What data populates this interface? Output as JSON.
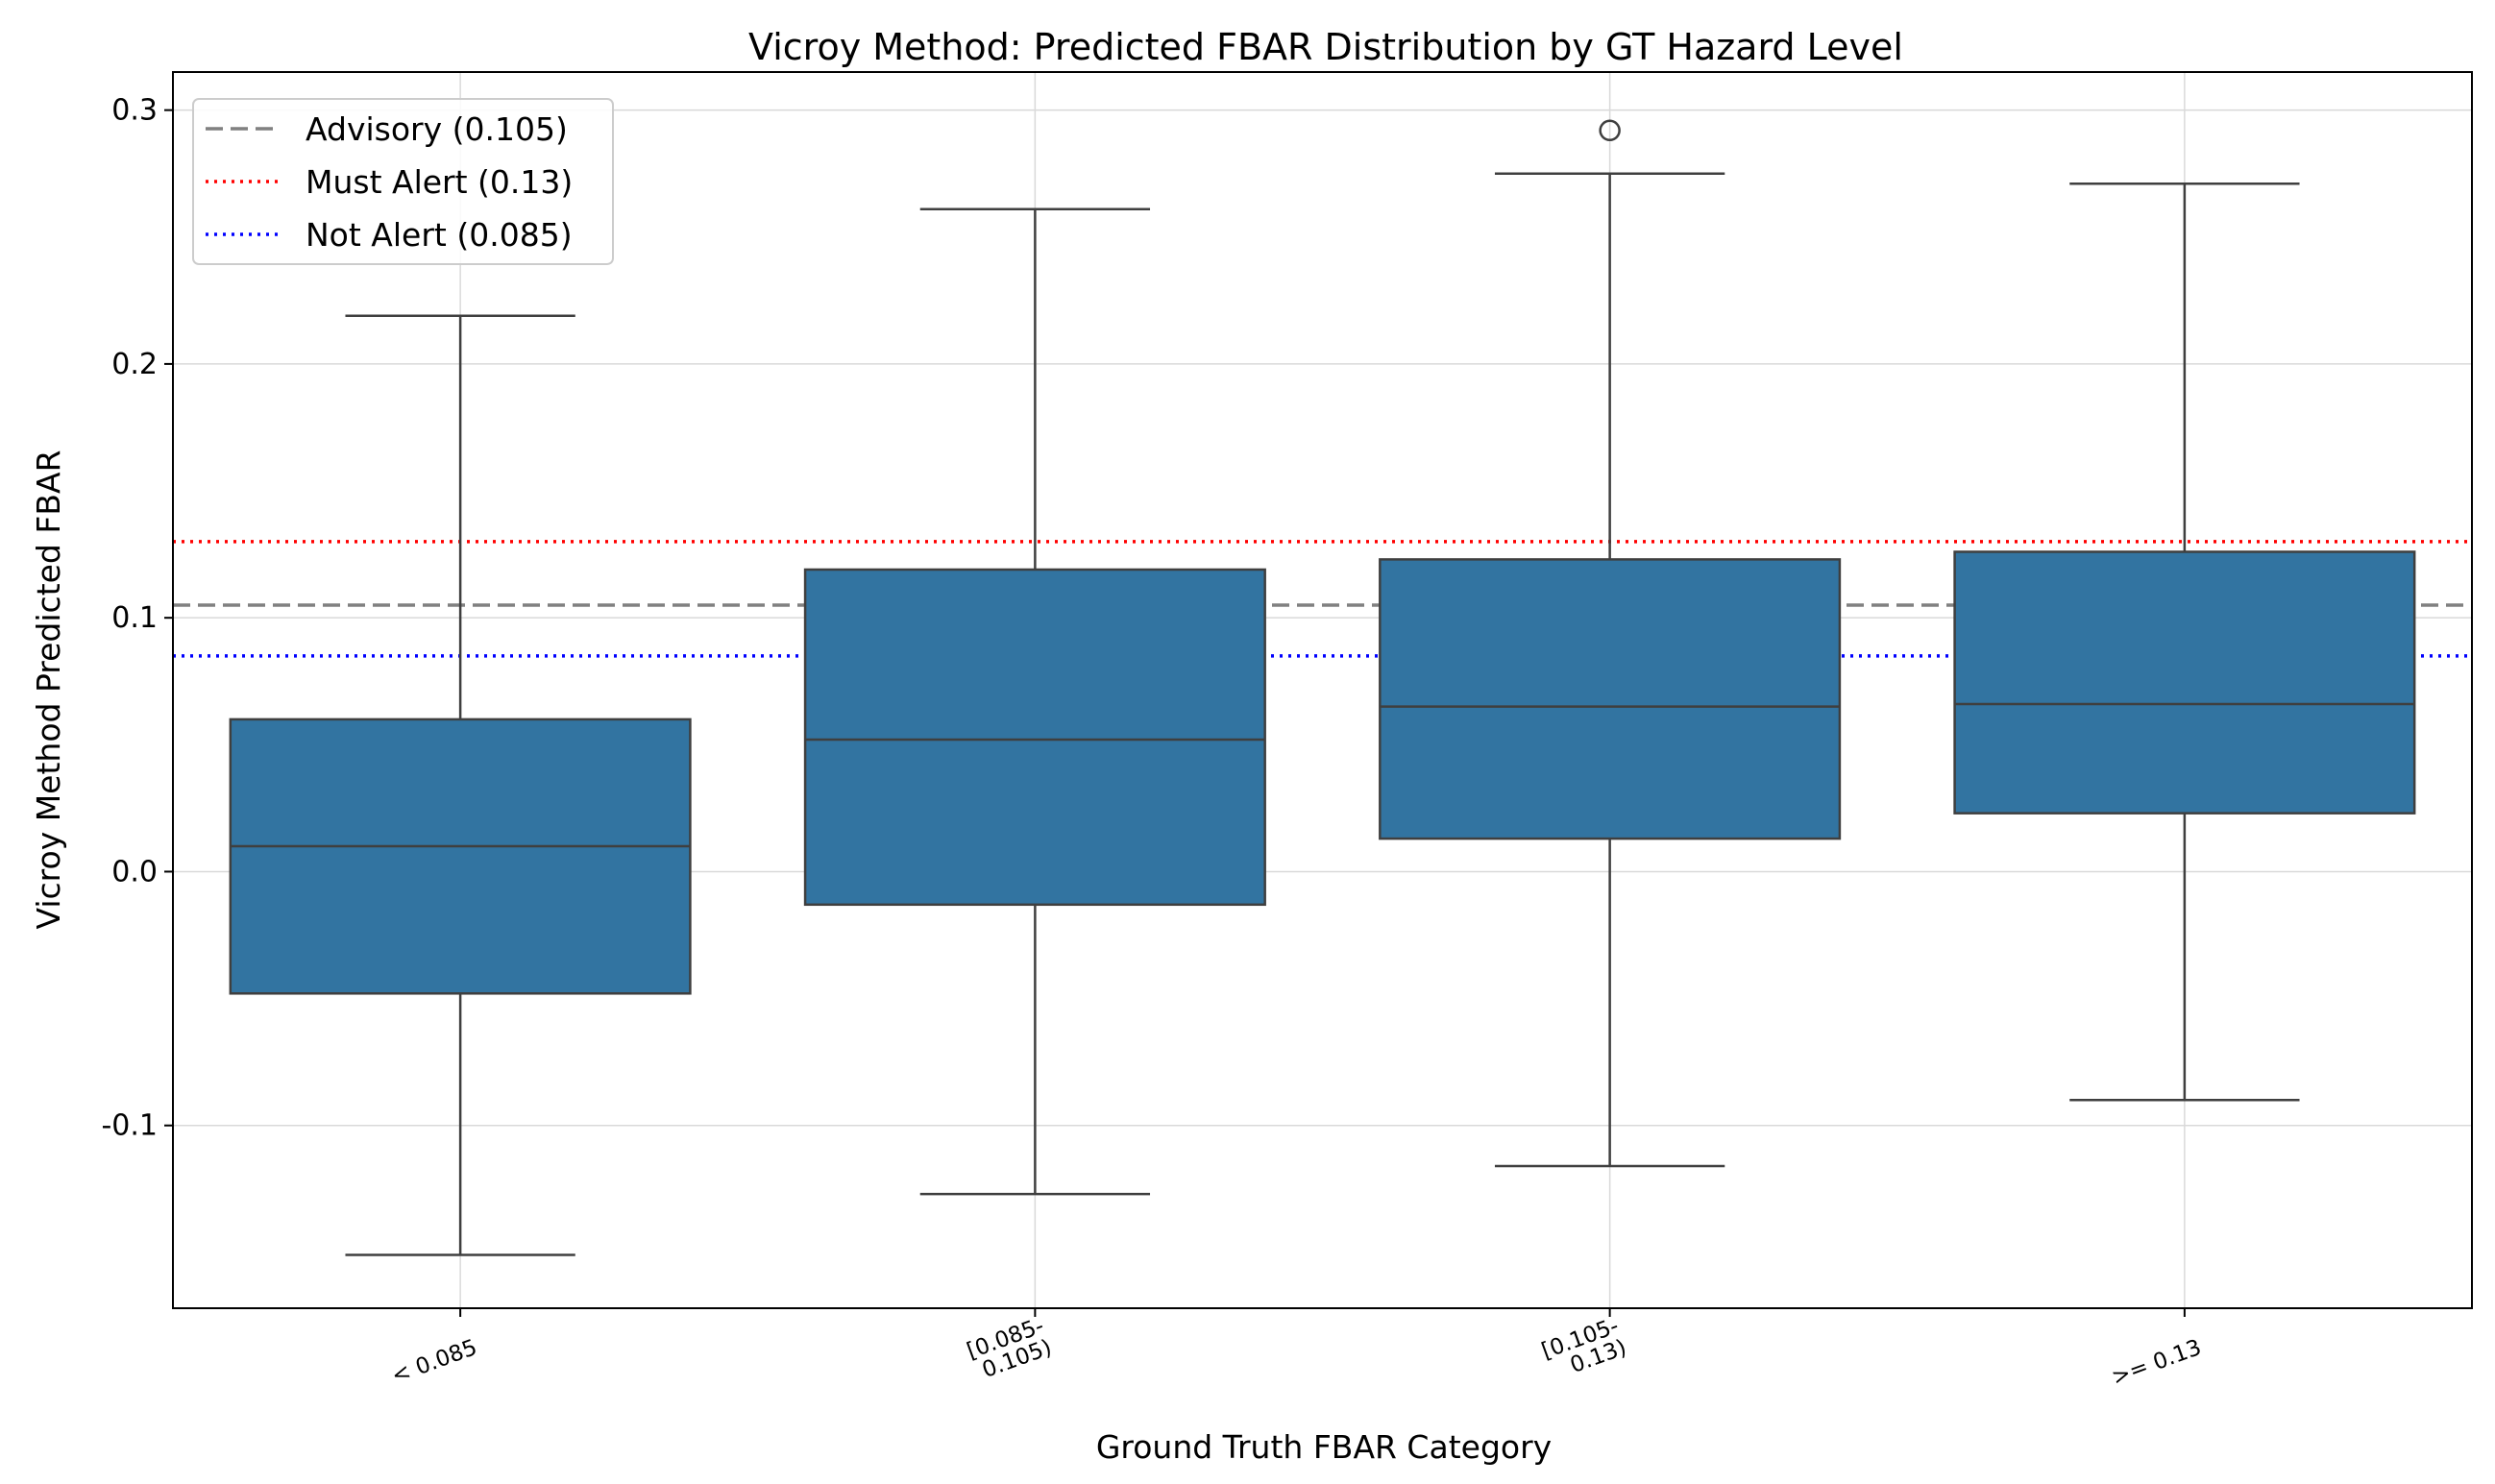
{
  "chart_data": {
    "type": "boxplot",
    "title": "Vicroy Method: Predicted FBAR Distribution by GT Hazard Level",
    "xlabel": "Ground Truth FBAR Category",
    "ylabel": "Vicroy Method Predicted FBAR",
    "ylim": [
      -0.172,
      0.315
    ],
    "yticks": [
      {
        "value": -0.1,
        "label": "-0.1"
      },
      {
        "value": 0.0,
        "label": "0.0"
      },
      {
        "value": 0.1,
        "label": "0.1"
      },
      {
        "value": 0.2,
        "label": "0.2"
      },
      {
        "value": 0.3,
        "label": "0.3"
      }
    ],
    "grid": true,
    "box_color": "#3274a1",
    "categories": [
      {
        "label_lines": [
          "< 0.085"
        ],
        "whisker_low": -0.151,
        "q1": -0.048,
        "median": 0.01,
        "q3": 0.06,
        "whisker_high": 0.219,
        "outliers": []
      },
      {
        "label_lines": [
          "[0.085-",
          "0.105)"
        ],
        "whisker_low": -0.127,
        "q1": -0.013,
        "median": 0.052,
        "q3": 0.119,
        "whisker_high": 0.261,
        "outliers": []
      },
      {
        "label_lines": [
          "[0.105-",
          "0.13)"
        ],
        "whisker_low": -0.116,
        "q1": 0.013,
        "median": 0.065,
        "q3": 0.123,
        "whisker_high": 0.275,
        "outliers": [
          0.292
        ]
      },
      {
        "label_lines": [
          ">= 0.13"
        ],
        "whisker_low": -0.09,
        "q1": 0.023,
        "median": 0.066,
        "q3": 0.126,
        "whisker_high": 0.271,
        "outliers": []
      }
    ],
    "reference_lines": [
      {
        "name": "Advisory (0.105)",
        "value": 0.105,
        "color": "#808080",
        "style": "dashed"
      },
      {
        "name": "Must Alert (0.13)",
        "value": 0.13,
        "color": "#ff0000",
        "style": "dotted"
      },
      {
        "name": "Not Alert (0.085)",
        "value": 0.085,
        "color": "#0000ff",
        "style": "dotted"
      }
    ],
    "legend_position": "top-left"
  }
}
